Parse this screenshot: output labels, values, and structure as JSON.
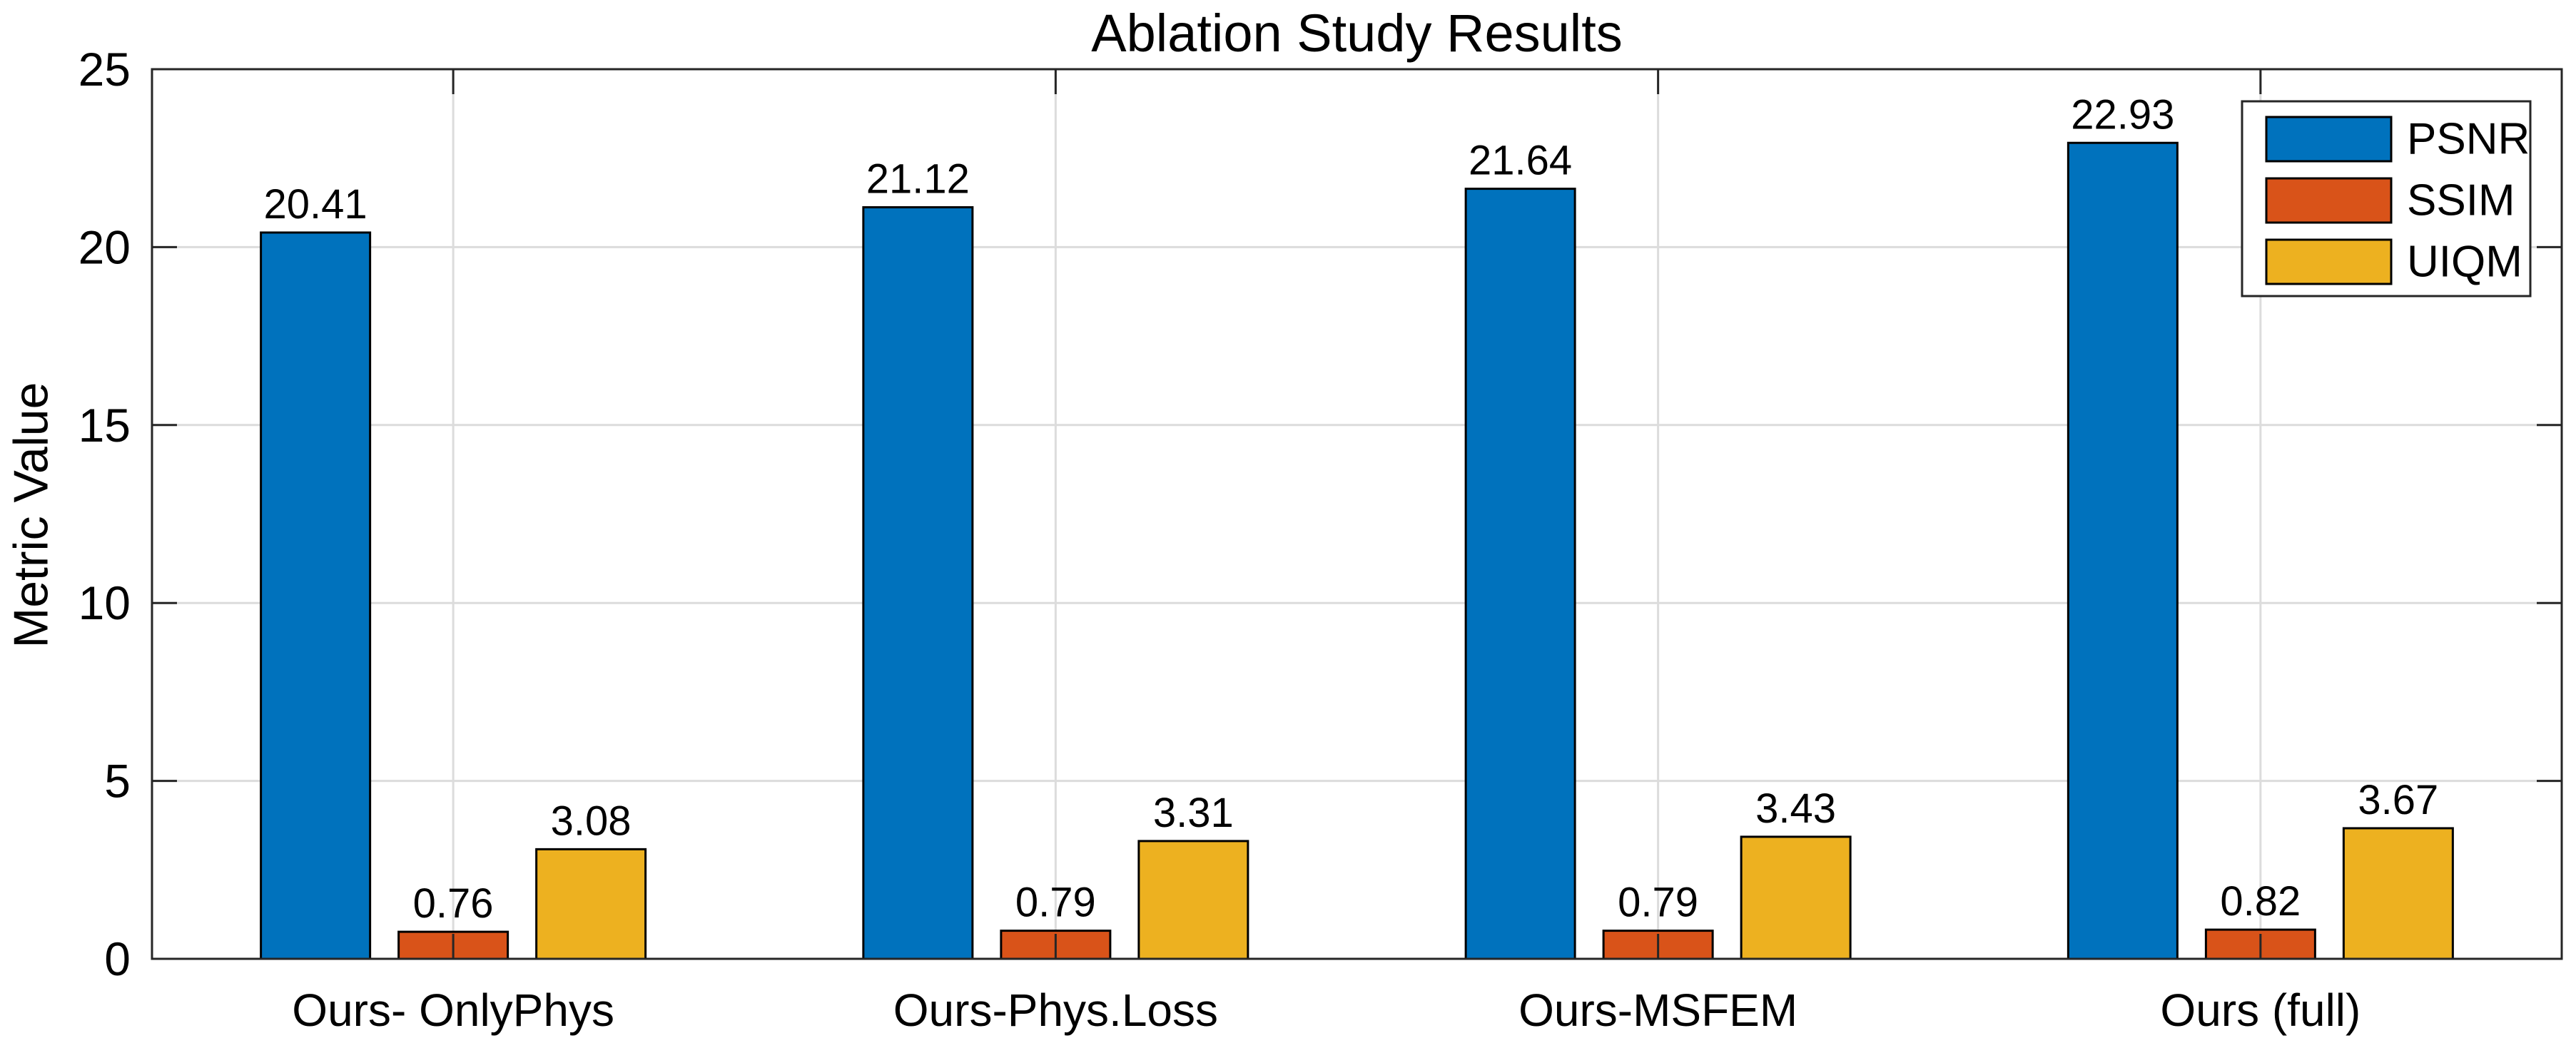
{
  "chart_data": {
    "type": "bar",
    "title": "Ablation Study Results",
    "xlabel": "",
    "ylabel": "Metric Value",
    "categories": [
      "Ours- OnlyPhys",
      "Ours-Phys.Loss",
      "Ours-MSFEM",
      "Ours (full)"
    ],
    "series": [
      {
        "name": "PSNR",
        "color": "#0072BD",
        "values": [
          20.41,
          21.12,
          21.64,
          22.93
        ]
      },
      {
        "name": "SSIM",
        "color": "#D95319",
        "values": [
          0.76,
          0.79,
          0.79,
          0.82
        ]
      },
      {
        "name": "UIQM",
        "color": "#EDB120",
        "values": [
          3.08,
          3.31,
          3.43,
          3.67
        ]
      }
    ],
    "value_labels": [
      [
        "20.41",
        "21.12",
        "21.64",
        "22.93"
      ],
      [
        "0.76",
        "0.79",
        "0.79",
        "0.82"
      ],
      [
        "3.08",
        "3.31",
        "3.43",
        "3.67"
      ]
    ],
    "ylim": [
      0,
      25
    ],
    "yticks": [
      0,
      5,
      10,
      15,
      20,
      25
    ],
    "ytick_labels": [
      "0",
      "5",
      "10",
      "15",
      "20",
      "25"
    ],
    "grid": "on",
    "legend": {
      "position": "top-right",
      "entries": [
        "PSNR",
        "SSIM",
        "UIQM"
      ]
    },
    "colors": {
      "axis_box": "#262626",
      "grid_line": "#DCDCDC",
      "bar_edge": "#000000",
      "text": "#000000",
      "background": "#FFFFFF"
    }
  }
}
